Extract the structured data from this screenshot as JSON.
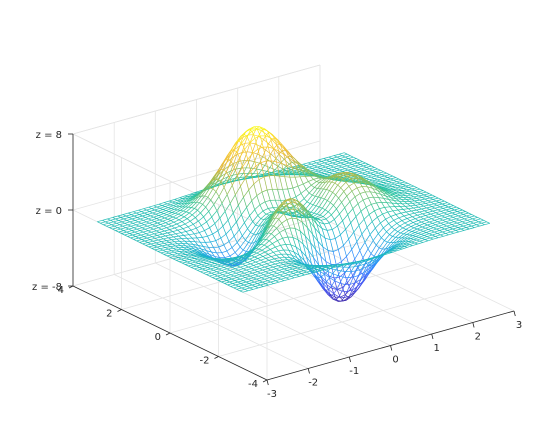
{
  "chart_data": {
    "type": "mesh",
    "function": "peaks",
    "title": "",
    "xlabel": "",
    "ylabel": "",
    "zlabel": "",
    "x": {
      "range": [
        -3,
        3
      ],
      "ticks": [
        -3,
        -2,
        -1,
        0,
        1,
        2,
        3
      ],
      "tick_labels": [
        "-3",
        "-2",
        "-1",
        "0",
        "1",
        "2",
        "3"
      ]
    },
    "y": {
      "range": [
        -4,
        4
      ],
      "ticks": [
        -4,
        -2,
        0,
        2,
        4
      ],
      "tick_labels": [
        "-4",
        "-2",
        "0",
        "2",
        "4"
      ]
    },
    "z": {
      "range": [
        -8,
        8
      ],
      "ticks": [
        -8,
        0,
        8
      ],
      "tick_labels": [
        "z = -8",
        "z = 0",
        "z = 8"
      ]
    },
    "x_grid": {
      "start": -3,
      "stop": 3,
      "count": 49
    },
    "y_grid": {
      "start": -3,
      "stop": 3,
      "count": 49
    },
    "z_max": 8.1,
    "z_min": -6.55,
    "colormap": [
      "#3e26a8",
      "#4557f4",
      "#2f8bfd",
      "#1bb1d4",
      "#2bc49f",
      "#8abf5c",
      "#e8b73c",
      "#fbd32f",
      "#f9fb15"
    ],
    "grid": true,
    "view": "3d"
  }
}
